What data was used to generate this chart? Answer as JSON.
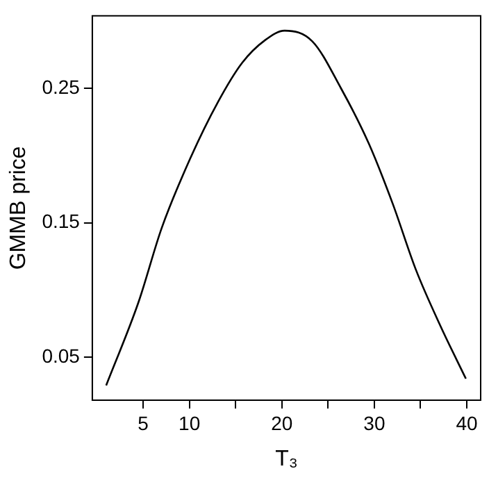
{
  "chart_data": {
    "type": "line",
    "xlabel": "T₃",
    "ylabel": "GMMB price",
    "x": [
      1.0,
      4.5,
      7.0,
      10.1,
      13.1,
      15.7,
      18.2,
      20.3,
      23.3,
      26.4,
      29.4,
      32.0,
      34.5,
      37.1,
      39.9
    ],
    "series": [
      {
        "color": "#000000",
        "values": [
          0.029,
          0.091,
          0.146,
          0.198,
          0.24,
          0.269,
          0.286,
          0.293,
          0.285,
          0.25,
          0.209,
          0.164,
          0.115,
          0.074,
          0.034
        ]
      }
    ],
    "xlim": [
      -0.5,
      41.5
    ],
    "ylim": [
      0.018,
      0.304
    ],
    "xticks": [
      5,
      10,
      {
        "value": 15,
        "label": null
      },
      20,
      {
        "value": 25,
        "label": null
      },
      30,
      {
        "value": 35,
        "label": null
      },
      40
    ],
    "yticks": [
      0.05,
      0.15,
      0.25
    ],
    "grid": false,
    "legend": false,
    "marker": "none",
    "line_style": "solid"
  }
}
